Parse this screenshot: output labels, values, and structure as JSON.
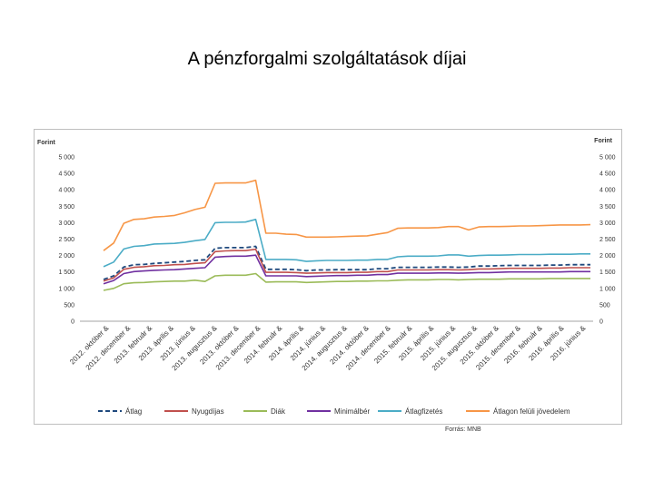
{
  "slide": {
    "title": "A pénzforgalmi szolgáltatások díjai",
    "source": "Forrás: MNB"
  },
  "chart_data": {
    "type": "line",
    "title": "",
    "ylabel_left": "Forint",
    "ylabel_right": "Forint",
    "ylim": [
      0,
      5000
    ],
    "yticks": [
      0,
      500,
      1000,
      1500,
      2000,
      2500,
      3000,
      3500,
      4000,
      4500,
      5000
    ],
    "ytick_labels": [
      "0",
      "500",
      "1 000",
      "1 500",
      "2 000",
      "2 500",
      "3 000",
      "3 500",
      "4 000",
      "4 500",
      "5 000"
    ],
    "grid": false,
    "legend_position": "bottom",
    "x_tick_labels": [
      "2012. október &",
      "2012. december &",
      "2013. február &",
      "2013. április &",
      "2013. június &",
      "2013. augusztus &",
      "2013. október &",
      "2013. december &",
      "2014. február &",
      "2014. április &",
      "2014. június &",
      "2014. augusztus &",
      "2014. október &",
      "2014. december &",
      "2015. február &",
      "2015. április &",
      "2015. június &",
      "2015. augusztus &",
      "2015. október &",
      "2015. december &",
      "2016. február &",
      "2016. április &",
      "2016. június &"
    ],
    "series": [
      {
        "name": "Átlag",
        "color": "#1f497d",
        "dash": true,
        "values": [
          1270,
          1380,
          1650,
          1720,
          1730,
          1760,
          1780,
          1800,
          1820,
          1850,
          1870,
          2220,
          2240,
          2240,
          2240,
          2280,
          1580,
          1580,
          1580,
          1570,
          1540,
          1560,
          1560,
          1570,
          1570,
          1570,
          1570,
          1600,
          1600,
          1640,
          1640,
          1640,
          1640,
          1650,
          1650,
          1640,
          1650,
          1680,
          1680,
          1690,
          1700,
          1700,
          1700,
          1700,
          1710,
          1710,
          1720,
          1720,
          1720
        ]
      },
      {
        "name": "Nyugdíjas",
        "color": "#c0504d",
        "values": [
          1220,
          1320,
          1580,
          1640,
          1660,
          1690,
          1700,
          1720,
          1730,
          1760,
          1780,
          2120,
          2140,
          2150,
          2150,
          2190,
          1490,
          1490,
          1490,
          1480,
          1460,
          1470,
          1480,
          1480,
          1480,
          1490,
          1490,
          1510,
          1510,
          1560,
          1560,
          1560,
          1560,
          1570,
          1570,
          1560,
          1570,
          1590,
          1590,
          1600,
          1610,
          1610,
          1610,
          1610,
          1620,
          1620,
          1630,
          1630,
          1630
        ]
      },
      {
        "name": "Diák",
        "color": "#9bbb59",
        "values": [
          940,
          1000,
          1140,
          1170,
          1180,
          1200,
          1210,
          1220,
          1220,
          1250,
          1210,
          1380,
          1400,
          1400,
          1400,
          1450,
          1190,
          1200,
          1200,
          1200,
          1180,
          1190,
          1200,
          1210,
          1210,
          1220,
          1220,
          1230,
          1230,
          1250,
          1260,
          1260,
          1260,
          1270,
          1270,
          1260,
          1270,
          1280,
          1280,
          1280,
          1290,
          1290,
          1290,
          1290,
          1300,
          1300,
          1300,
          1300,
          1300
        ]
      },
      {
        "name": "Minimálbér",
        "color": "#7030a0",
        "values": [
          1140,
          1240,
          1450,
          1510,
          1530,
          1550,
          1560,
          1570,
          1590,
          1610,
          1630,
          1950,
          1970,
          1980,
          1980,
          2010,
          1380,
          1380,
          1380,
          1380,
          1360,
          1370,
          1380,
          1390,
          1390,
          1400,
          1400,
          1420,
          1420,
          1460,
          1460,
          1460,
          1460,
          1470,
          1470,
          1460,
          1470,
          1480,
          1480,
          1490,
          1500,
          1500,
          1500,
          1500,
          1500,
          1500,
          1510,
          1510,
          1510
        ]
      },
      {
        "name": "Átlagfizetés",
        "color": "#4bacc6",
        "values": [
          1660,
          1800,
          2200,
          2280,
          2300,
          2350,
          2360,
          2370,
          2400,
          2450,
          2490,
          3000,
          3010,
          3010,
          3020,
          3100,
          1880,
          1880,
          1880,
          1870,
          1820,
          1840,
          1850,
          1850,
          1850,
          1860,
          1860,
          1880,
          1880,
          1960,
          1980,
          1980,
          1980,
          1990,
          2020,
          2020,
          1980,
          2000,
          2010,
          2010,
          2020,
          2030,
          2030,
          2030,
          2040,
          2040,
          2040,
          2050,
          2050
        ]
      },
      {
        "name": "Átlagon felüli jövedelem",
        "color": "#f79646",
        "values": [
          2150,
          2380,
          2980,
          3100,
          3120,
          3170,
          3190,
          3220,
          3300,
          3400,
          3470,
          4200,
          4210,
          4210,
          4210,
          4290,
          2680,
          2680,
          2650,
          2640,
          2560,
          2560,
          2560,
          2570,
          2580,
          2590,
          2600,
          2650,
          2700,
          2830,
          2840,
          2840,
          2840,
          2850,
          2880,
          2880,
          2780,
          2870,
          2880,
          2880,
          2890,
          2900,
          2900,
          2910,
          2920,
          2930,
          2930,
          2930,
          2940
        ]
      }
    ]
  }
}
